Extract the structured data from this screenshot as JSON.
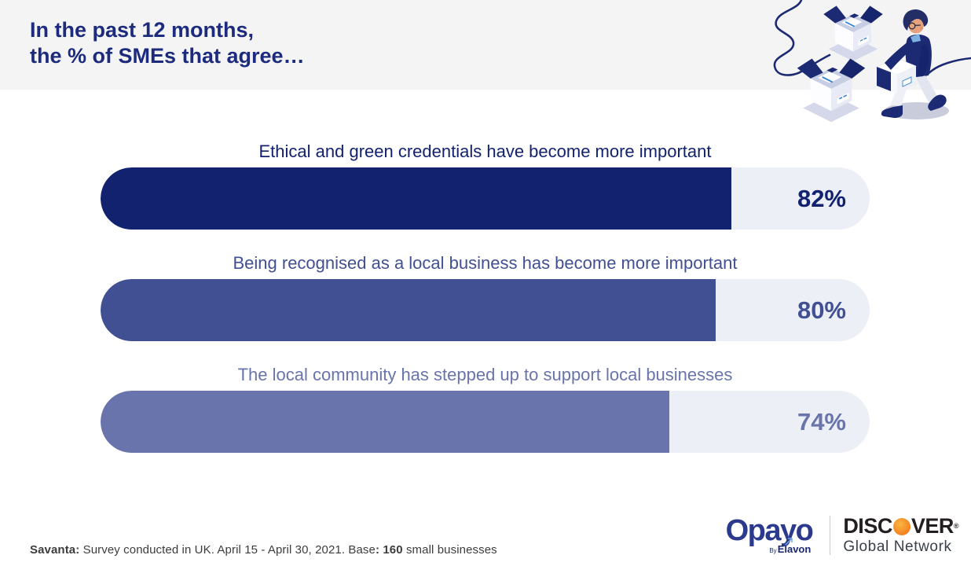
{
  "header": {
    "title_line1": "In the past 12 months,",
    "title_line2": "the % of SMEs that agree…"
  },
  "illustration": {
    "name": "person-carrying-boxes",
    "accent_color": "#1B2A72"
  },
  "chart_data": {
    "type": "bar",
    "orientation": "horizontal",
    "title": "In the past 12 months, the % of SMEs that agree…",
    "categories": [
      "Ethical and green credentials have become more important",
      "Being recognised as a local business has become more important",
      "The local community has stepped up to support local businesses"
    ],
    "values": [
      82,
      80,
      74
    ],
    "value_labels": [
      "82%",
      "80%",
      "74%"
    ],
    "unit": "%",
    "xlim": [
      0,
      100
    ],
    "bar_colors": [
      "#12226F",
      "#414F93",
      "#6974AC"
    ],
    "track_color": "#EDEFF6",
    "grid": false,
    "legend": false
  },
  "footer": {
    "source": {
      "seg1_bold": "Savanta:",
      "seg2": " Survey conducted in UK. April 15 - April 30, 2021. Base",
      "seg3_bold": ": 160",
      "seg4": " small businesses"
    },
    "logos": {
      "opayo_name": "Opayo",
      "opayo_blue": "#2C3A8D",
      "opayo_byline_by": "By",
      "opayo_byline_brand": "Elavon",
      "discover_prefix": "DISC",
      "discover_suffix": "VER",
      "discover_reg_mark": "®",
      "discover_orange": "#F4801F",
      "discover_subtitle": "Global Network"
    }
  }
}
